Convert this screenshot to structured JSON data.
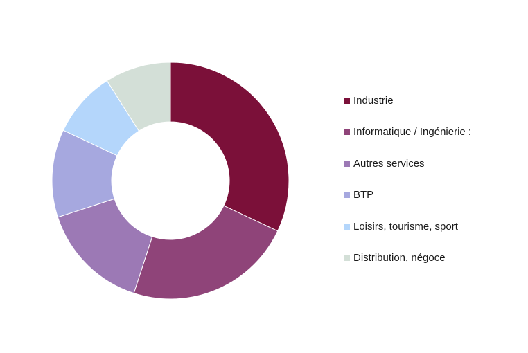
{
  "chart_data": {
    "type": "pie",
    "donut": true,
    "title": "",
    "legend_position": "right",
    "categories": [
      "Industrie",
      "Informatique / Ingénierie :",
      "Autres services",
      "BTP",
      "Loisirs, tourisme, sport",
      "Distribution, négoce"
    ],
    "values": [
      32,
      23,
      15,
      12,
      9,
      9
    ],
    "colors": [
      "#7b1039",
      "#8f4479",
      "#9c79b5",
      "#a6a8df",
      "#b4d6fb",
      "#d3dfd7"
    ]
  }
}
